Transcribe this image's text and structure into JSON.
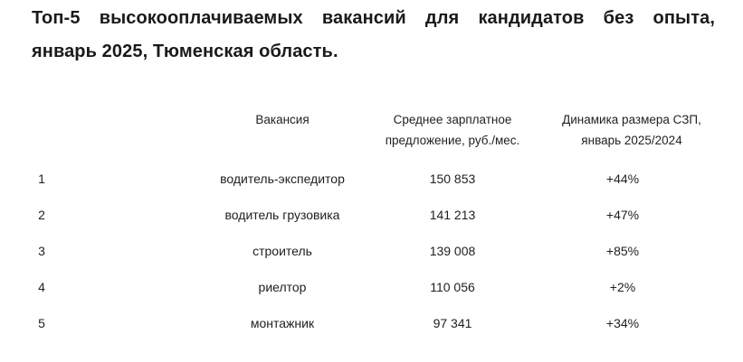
{
  "title": {
    "line1": "Топ-5 высокооплачиваемых вакансий для кандидатов без опыта,",
    "line2": "январь 2025, Тюменская область."
  },
  "table": {
    "headers": {
      "vacancy": "Вакансия",
      "salary_line1": "Среднее зарплатное",
      "salary_line2": "предложение, руб./мес.",
      "dynamics_line1": "Динамика размера СЗП,",
      "dynamics_line2": "январь 2025/2024"
    },
    "rows": [
      {
        "rank": "1",
        "vacancy": "водитель-экспедитор",
        "salary": "150 853",
        "dynamics": "+44%"
      },
      {
        "rank": "2",
        "vacancy": "водитель грузовика",
        "salary": "141 213",
        "dynamics": "+47%"
      },
      {
        "rank": "3",
        "vacancy": "строитель",
        "salary": "139 008",
        "dynamics": "+85%"
      },
      {
        "rank": "4",
        "vacancy": "риелтор",
        "salary": "110 056",
        "dynamics": "+2%"
      },
      {
        "rank": "5",
        "vacancy": "монтажник",
        "salary": "97 341",
        "dynamics": "+34%"
      }
    ]
  },
  "chart_data": {
    "type": "table",
    "title": "Топ-5 высокооплачиваемых вакансий для кандидатов без опыта, январь 2025, Тюменская область.",
    "columns": [
      "№",
      "Вакансия",
      "Среднее зарплатное предложение, руб./мес.",
      "Динамика размера СЗП, январь 2025/2024"
    ],
    "rows": [
      [
        "1",
        "водитель-экспедитор",
        150853,
        "+44%"
      ],
      [
        "2",
        "водитель грузовика",
        141213,
        "+47%"
      ],
      [
        "3",
        "строитель",
        139008,
        "+85%"
      ],
      [
        "4",
        "риелтор",
        110056,
        "+2%"
      ],
      [
        "5",
        "монтажник",
        97341,
        "+34%"
      ]
    ]
  },
  "colors": {
    "background": "#ffffff",
    "title_text": "#1a1a1a",
    "table_text": "#1f1f1f"
  }
}
